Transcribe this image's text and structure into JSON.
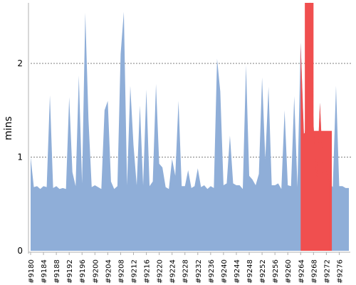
{
  "chart_data": {
    "type": "area",
    "xlabel": "",
    "ylabel": "mins",
    "ylim": [
      0,
      2.66
    ],
    "yticks": [
      0,
      1,
      2
    ],
    "grid": "horizontal dashed",
    "x_tick_labels": [
      "#9180",
      "#9184",
      "#9188",
      "#9192",
      "#9196",
      "#9200",
      "#9204",
      "#9208",
      "#9212",
      "#9216",
      "#9220",
      "#9224",
      "#9228",
      "#9232",
      "#9236",
      "#9240",
      "#9244",
      "#9248",
      "#9252",
      "#9256",
      "#9260",
      "#9264",
      "#9268",
      "#9272",
      "#9276"
    ],
    "x_start": 9180,
    "x_end": 9279,
    "values": [
      1.0,
      0.68,
      0.69,
      0.66,
      0.69,
      0.68,
      1.66,
      0.67,
      0.69,
      0.66,
      0.67,
      0.66,
      1.64,
      0.84,
      0.69,
      1.87,
      0.72,
      2.54,
      1.4,
      0.68,
      0.7,
      0.68,
      0.66,
      1.5,
      1.6,
      0.74,
      0.66,
      0.69,
      2.1,
      2.55,
      0.7,
      1.76,
      1.13,
      0.7,
      1.55,
      0.7,
      1.72,
      0.69,
      0.74,
      1.78,
      0.93,
      0.89,
      0.68,
      0.66,
      0.98,
      0.8,
      1.6,
      0.69,
      0.69,
      0.86,
      0.67,
      0.69,
      0.88,
      0.68,
      0.7,
      0.66,
      0.69,
      0.67,
      2.05,
      1.7,
      0.7,
      0.72,
      1.23,
      0.72,
      0.7,
      0.7,
      0.66,
      1.98,
      0.8,
      0.76,
      0.7,
      0.82,
      1.85,
      0.98,
      1.75,
      0.7,
      0.7,
      0.72,
      0.66,
      1.5,
      0.7,
      0.69,
      1.65,
      0.68,
      2.22,
      1.25,
      1.28,
      2.66,
      1.35,
      0.75,
      1.58,
      0.82,
      0.85,
      0.72,
      0.68,
      1.76,
      0.69,
      0.69,
      0.67,
      0.67
    ],
    "highlight": {
      "from": 9264,
      "to": 9273
    },
    "colors": {
      "area": "#8faed8",
      "highlight": "#f04f4f",
      "grid": "#7f7f7f",
      "axis": "#b0b0b0"
    }
  }
}
